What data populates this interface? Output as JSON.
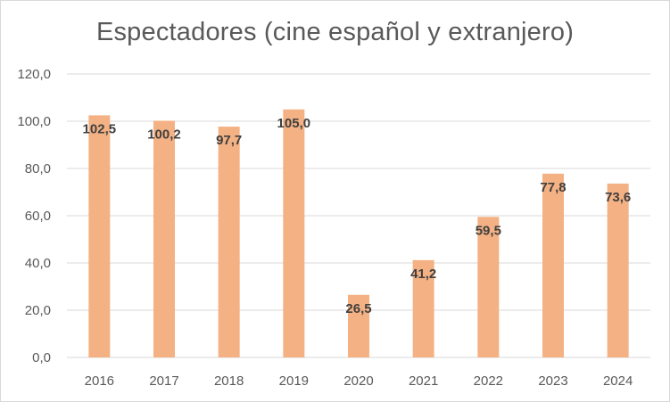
{
  "chart_data": {
    "type": "bar",
    "title": "Espectadores (cine español y extranjero)",
    "categories": [
      "2016",
      "2017",
      "2018",
      "2019",
      "2020",
      "2021",
      "2022",
      "2023",
      "2024"
    ],
    "values": [
      102.5,
      100.2,
      97.7,
      105.0,
      26.5,
      41.2,
      59.5,
      77.8,
      73.6
    ],
    "value_labels": [
      "102,5",
      "100,2",
      "97,7",
      "105,0",
      "26,5",
      "41,2",
      "59,5",
      "77,8",
      "73,6"
    ],
    "y_ticks": [
      0,
      20,
      40,
      60,
      80,
      100,
      120
    ],
    "y_tick_labels": [
      "0,0",
      "20,0",
      "40,0",
      "60,0",
      "80,0",
      "100,0",
      "120,0"
    ],
    "ylim": [
      0,
      120
    ],
    "xlabel": "",
    "ylabel": "",
    "grid": true,
    "legend": "none",
    "bar_color": "#f4b183",
    "grid_color": "#d9d9d9"
  }
}
